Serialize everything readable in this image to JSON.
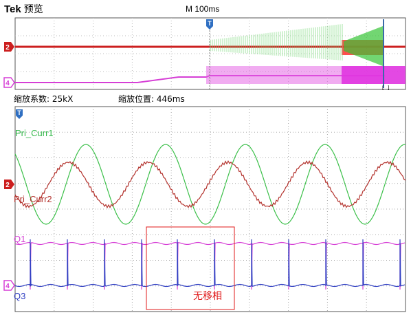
{
  "header": {
    "brand": "Tek",
    "mode": "预览",
    "timebase": "M 100ms"
  },
  "zoom": {
    "factor_text": "缩放系数: 25kX",
    "position_text": "缩放位置: 446ms"
  },
  "channels": {
    "ch2_marker": "2",
    "ch4_marker": "4",
    "trigger_marker": "T"
  },
  "traces": {
    "pri_curr1": "Pri_Curr1",
    "pri_curr2": "Pri_Curr2",
    "q1": "Q1",
    "q3": "Q3"
  },
  "annotation": {
    "text": "无移相",
    "color": "#e01818"
  },
  "cursor_marker": "[ ]",
  "colors": {
    "ch1_green": "#34b84a",
    "ch2_red": "#b3312c",
    "ch4_magenta": "#d63fd6",
    "ch3_blue": "#2f3ec2",
    "grid": "#9a9a9a"
  }
}
